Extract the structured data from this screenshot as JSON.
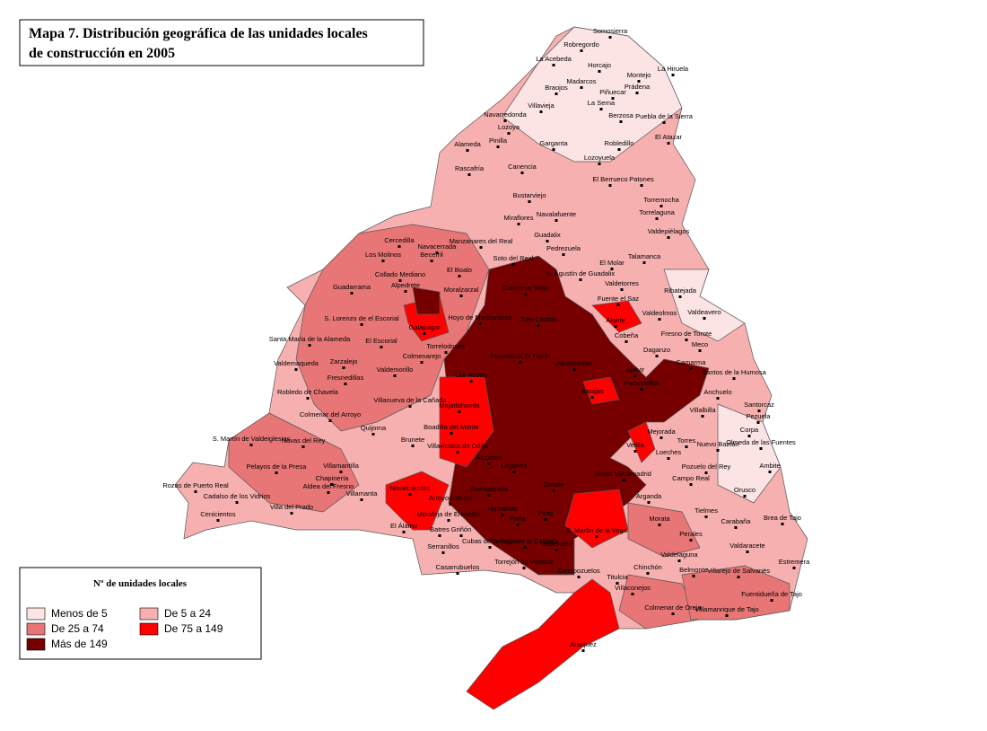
{
  "title": [
    "Mapa 7. Distribución geográfica de las unidades locales",
    "de construcción en 2005"
  ],
  "legend": {
    "title": "Nº de unidades locales",
    "items": [
      {
        "label": "Menos de 5",
        "color": "#fde4e4"
      },
      {
        "label": "De 5 a 24",
        "color": "#f7b0b0"
      },
      {
        "label": "De 25 a 74",
        "color": "#e87676"
      },
      {
        "label": "De 75 a 149",
        "color": "#ff0000"
      },
      {
        "label": "Más de 149",
        "color": "#760000"
      }
    ]
  },
  "municipalities": [
    "Somosierra",
    "Robregordo",
    "La Acebeda",
    "Horcajo",
    "La Hiruela",
    "Montejo",
    "Madarcos",
    "Braojos",
    "Prádena",
    "Piñuecar",
    "La Serna",
    "Villavieja",
    "Puebla de la Sierra",
    "Navarredonda",
    "Berzosa",
    "Lozoya",
    "Pinilla",
    "Garganta",
    "Robledillo",
    "El Atazar",
    "Alameda",
    "Lozoyuela",
    "Rascafría",
    "Canencia",
    "El Berrueco",
    "Patones",
    "Bustarviejo",
    "Torremocha",
    "Miraflores",
    "Navalafuente",
    "Torrelaguna",
    "Guadalix",
    "Valdepiélagos",
    "Manzanares del Real",
    "Cercedilla",
    "Navacerrada",
    "Becerril",
    "Soto del Real",
    "Pedrezuela",
    "El Molar",
    "Talamanca",
    "Los Molinos",
    "El Boalo",
    "Collado Mediano",
    "Guadarrama",
    "Alpedrete",
    "Moralzarzal",
    "Colmenar Viejo",
    "S. Agustín de Guadalix",
    "Valdetorres",
    "Ribatejada",
    "Fuente el Saz",
    "Valdeavero",
    "Hoyo de Manzanares",
    "Tres Cantos",
    "Algete",
    "Valdeolmos",
    "S. Lorenzo de el Escorial",
    "Galapagar",
    "Torrelodones",
    "Cobeña",
    "Fresno de Torote",
    "Meco",
    "Santa María de la Alameda",
    "El Escorial",
    "Fuencarral El Pardo",
    "Daganzo",
    "Colmenarejo",
    "Zarzalejo",
    "Alcobendas",
    "Ajalvir",
    "Camarma",
    "Valdemaqueda",
    "Valdemorillo",
    "Las Rozas",
    "Paracuellos",
    "Santos de la Humosa",
    "Fresnedillas",
    "Anchuelo",
    "Robledo de Chavela",
    "Barajas",
    "Villanueva de la Cañada",
    "Majadahonda",
    "Santorcaz",
    "Colmenar del Arroyo",
    "Villalbilla",
    "Pezuela",
    "Boadilla del Monte",
    "Quijorna",
    "Corpa",
    "Mejorada",
    "Torres",
    "Nuevo Baztán",
    "Olmeda de las Fuentes",
    "Brunete",
    "Villaviciosa de Odón",
    "Navas del Rey",
    "Velilla",
    "S. Martín de Valdeiglesias",
    "Villamantilla",
    "Alcorcón",
    "Loeches",
    "Pelayos de la Presa",
    "Leganés",
    "Ambite",
    "Rivas Vaciamadrid",
    "Pozuelo del Rey",
    "Rozas de Puerto Real",
    "Chapinería",
    "Aldea del Fresno",
    "Getafe",
    "Fuenlabrada",
    "Campo Real",
    "Villamanta",
    "Navalcarnero",
    "Arganda",
    "Cadalso de los Vidrios",
    "Orusco",
    "Arroyomolinos",
    "Villa del Prado",
    "Tielmes",
    "Carabaña",
    "Cenicientos",
    "Humanes",
    "Parla",
    "Pinto",
    "Moraleja de Enmedio",
    "Morata",
    "Brea de Tajo",
    "S. Martín de la Vega",
    "El Álamo",
    "Batres",
    "Griñón",
    "Perales",
    "Valdaracete",
    "Serranillos",
    "Cubas de la Sagra",
    "Torrejón de la Calzada",
    "Valdemoro",
    "Estremera",
    "Valdelaguna",
    "Casarrubuelos",
    "Torrejón de Velasco",
    "Ciempozuelos",
    "Chinchón",
    "Villarejo de Salvanés",
    "Belmonte",
    "Titulcia",
    "Villaconejos",
    "Fuentidueña de Tajo",
    "Colmenar de Oreja",
    "Villamanrique de Tajo",
    "Aranjuez"
  ]
}
